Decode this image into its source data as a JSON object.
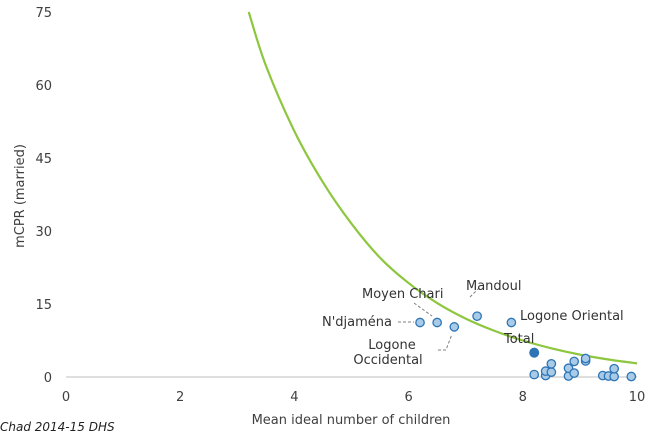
{
  "chart_data": {
    "type": "scatter",
    "xlabel": "Mean ideal number of children",
    "ylabel": "mCPR (married)",
    "xlim": [
      0,
      10
    ],
    "ylim": [
      0,
      75
    ],
    "x_ticks": [
      0,
      2,
      4,
      6,
      8,
      10
    ],
    "y_ticks": [
      0,
      15,
      30,
      45,
      60,
      75
    ],
    "x_tick_labels": [
      "0",
      "2",
      "4",
      "6",
      "8",
      "10"
    ],
    "y_tick_labels": [
      "0",
      "15",
      "30",
      "45",
      "60",
      "75"
    ],
    "grid": false,
    "colors": {
      "curve": "#8dc63f",
      "marker_fill": "#a9cbe8",
      "marker_edge": "#2e75b6",
      "highlight": "#2e75b6",
      "leader": "#808080"
    },
    "points": [
      {
        "x": 6.2,
        "y": 11.2
      },
      {
        "x": 6.5,
        "y": 11.2
      },
      {
        "x": 6.8,
        "y": 10.3
      },
      {
        "x": 7.2,
        "y": 12.5
      },
      {
        "x": 7.8,
        "y": 11.2
      },
      {
        "x": 8.2,
        "y": 0.5
      },
      {
        "x": 8.4,
        "y": 0.3
      },
      {
        "x": 8.4,
        "y": 1.2
      },
      {
        "x": 8.5,
        "y": 1.0
      },
      {
        "x": 8.5,
        "y": 2.7
      },
      {
        "x": 8.8,
        "y": 0.2
      },
      {
        "x": 8.8,
        "y": 1.8
      },
      {
        "x": 8.9,
        "y": 0.8
      },
      {
        "x": 8.9,
        "y": 3.2
      },
      {
        "x": 9.1,
        "y": 3.3
      },
      {
        "x": 9.1,
        "y": 3.8
      },
      {
        "x": 9.4,
        "y": 0.3
      },
      {
        "x": 9.5,
        "y": 0.2
      },
      {
        "x": 9.6,
        "y": 0.1
      },
      {
        "x": 9.6,
        "y": 1.7
      },
      {
        "x": 9.9,
        "y": 0.1
      }
    ],
    "highlight_point": {
      "x": 8.2,
      "y": 5.0
    },
    "curve": [
      {
        "x": 3.2,
        "y": 75.0
      },
      {
        "x": 3.5,
        "y": 64.0
      },
      {
        "x": 4.0,
        "y": 50.5
      },
      {
        "x": 4.5,
        "y": 40.0
      },
      {
        "x": 5.0,
        "y": 31.5
      },
      {
        "x": 5.5,
        "y": 24.5
      },
      {
        "x": 6.0,
        "y": 19.3
      },
      {
        "x": 6.5,
        "y": 15.2
      },
      {
        "x": 7.0,
        "y": 12.0
      },
      {
        "x": 7.5,
        "y": 9.5
      },
      {
        "x": 8.0,
        "y": 7.5
      },
      {
        "x": 8.5,
        "y": 5.9
      },
      {
        "x": 9.0,
        "y": 4.6
      },
      {
        "x": 9.5,
        "y": 3.6
      },
      {
        "x": 10.0,
        "y": 2.8
      }
    ],
    "annotations": {
      "ndjamena": "N'djaména",
      "moyen_chari": "Moyen Chari",
      "mandoul": "Mandoul",
      "logone_oriental": "Logone Oriental",
      "logone_occ_line1": "Logone",
      "logone_occ_line2": "Occidental",
      "total": "Total"
    },
    "source": "Chad 2014-15 DHS"
  }
}
